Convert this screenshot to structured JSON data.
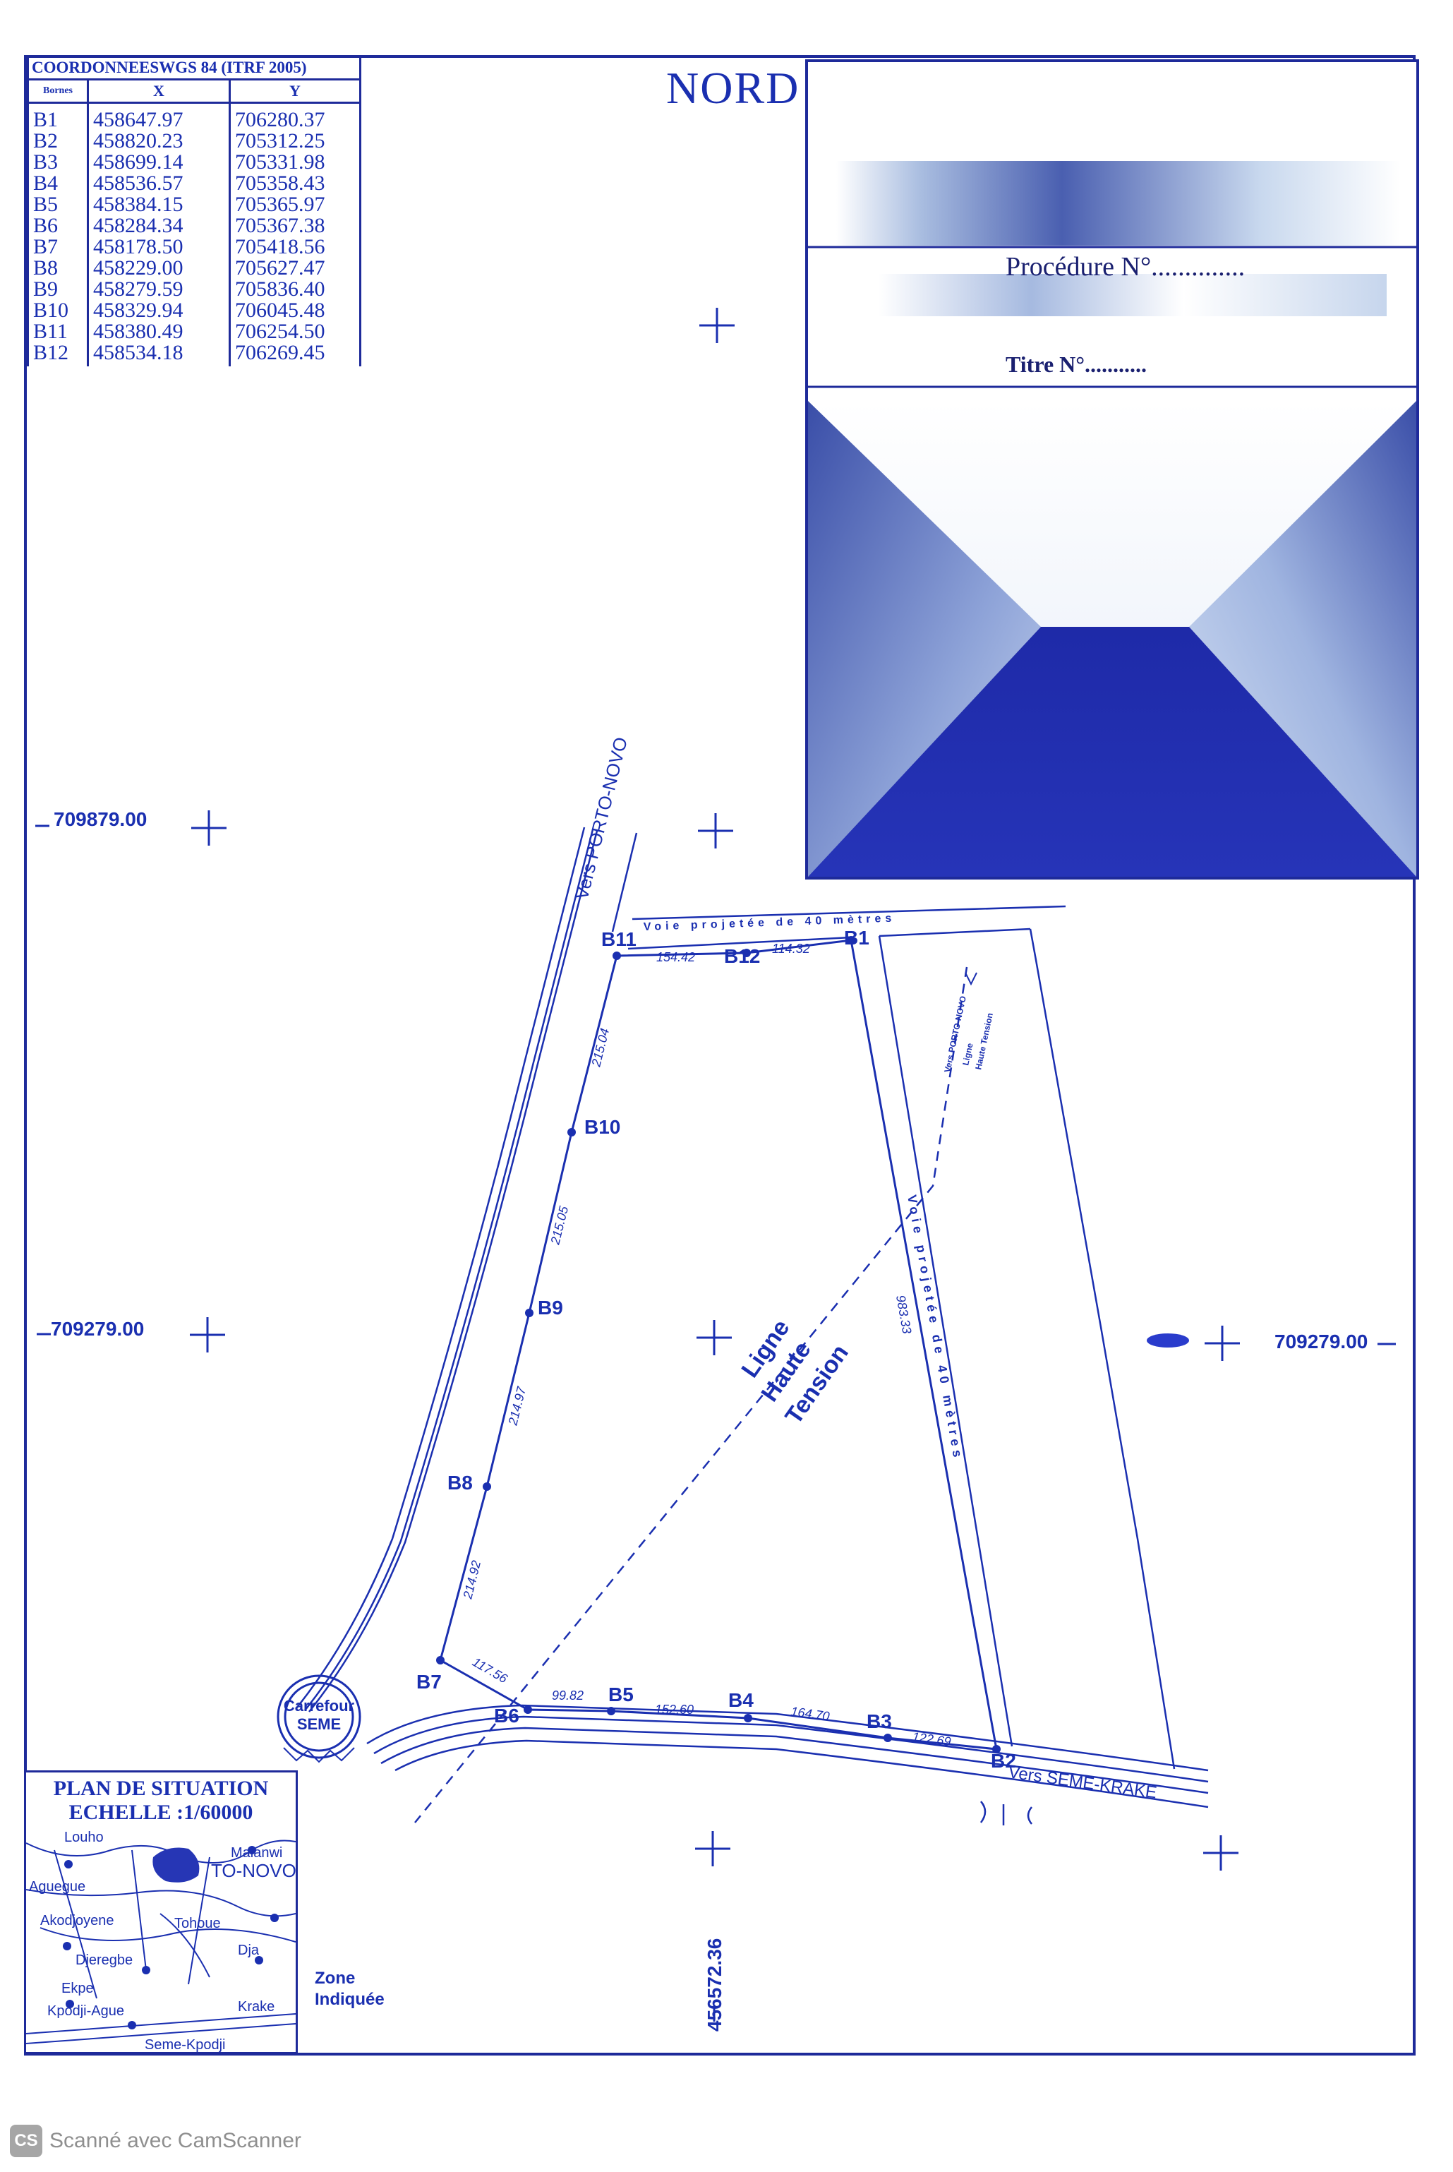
{
  "coords_table": {
    "title": "COORDONNEESWGS 84 (ITRF 2005)",
    "headers": [
      "Bornes",
      "X",
      "Y"
    ],
    "rows": [
      [
        "B1",
        "458647.97",
        "706280.37"
      ],
      [
        "B2",
        "458820.23",
        "705312.25"
      ],
      [
        "B3",
        "458699.14",
        "705331.98"
      ],
      [
        "B4",
        "458536.57",
        "705358.43"
      ],
      [
        "B5",
        "458384.15",
        "705365.97"
      ],
      [
        "B6",
        "458284.34",
        "705367.38"
      ],
      [
        "B7",
        "458178.50",
        "705418.56"
      ],
      [
        "B8",
        "458229.00",
        "705627.47"
      ],
      [
        "B9",
        "458279.59",
        "705836.40"
      ],
      [
        "B10",
        "458329.94",
        "706045.48"
      ],
      [
        "B11",
        "458380.49",
        "706254.50"
      ],
      [
        "B12",
        "458534.18",
        "706269.45"
      ]
    ]
  },
  "north_label": "NORD",
  "cartouche": {
    "procedure_label": "Procédure N°..............",
    "titre_label": "Titre N°..........."
  },
  "grid_labels": {
    "y_top": "709879.00",
    "y_mid_left": "709279.00",
    "y_mid_right": "709279.00",
    "x_bottom": "456572.36"
  },
  "roads": {
    "porto_novo": "Vers PORTO-NOVO",
    "seme_krake": "Vers SEME-KRAKE",
    "voie_top": "Voie projetée de 40 mètres",
    "voie_right": "Voie projetée de 40 mètres",
    "roundabout": [
      "Carrefour",
      "SEME"
    ],
    "hv_line": [
      "Ligne",
      "Haute",
      "Tension"
    ],
    "hv_small": [
      "Vers PORTO-NOVO",
      "Ligne",
      "Haute Tension"
    ]
  },
  "bornes_labels": [
    "B1",
    "B2",
    "B3",
    "B4",
    "B5",
    "B6",
    "B7",
    "B8",
    "B9",
    "B10",
    "B11",
    "B12"
  ],
  "distances": {
    "b11_b12": "154.42",
    "b12_b1": "114.32",
    "b1_b2": "983.33",
    "b2_b3": "122.69",
    "b3_b4": "164.70",
    "b4_b5": "152.60",
    "b5_b6": "99.82",
    "b6_b7": "117.56",
    "b7_b8": "214.92",
    "b8_b9": "214.97",
    "b9_b10": "215.05",
    "b10_b11": "215.04"
  },
  "situation": {
    "title": "PLAN DE SITUATION",
    "scale": "ECHELLE :1/60000",
    "places": [
      "Louho",
      "Malanwi",
      "Aguegue",
      "TO-NOVO",
      "Akodjoyene",
      "Tohoue",
      "Djeregbe",
      "Dja",
      "Ekpe",
      "Krake",
      "Kpodji-Ague",
      "Seme-Kpodji"
    ],
    "zone_label": [
      "Zone",
      "Indiquée"
    ]
  },
  "footer": {
    "logo": "CS",
    "text": "Scanné avec CamScanner"
  }
}
